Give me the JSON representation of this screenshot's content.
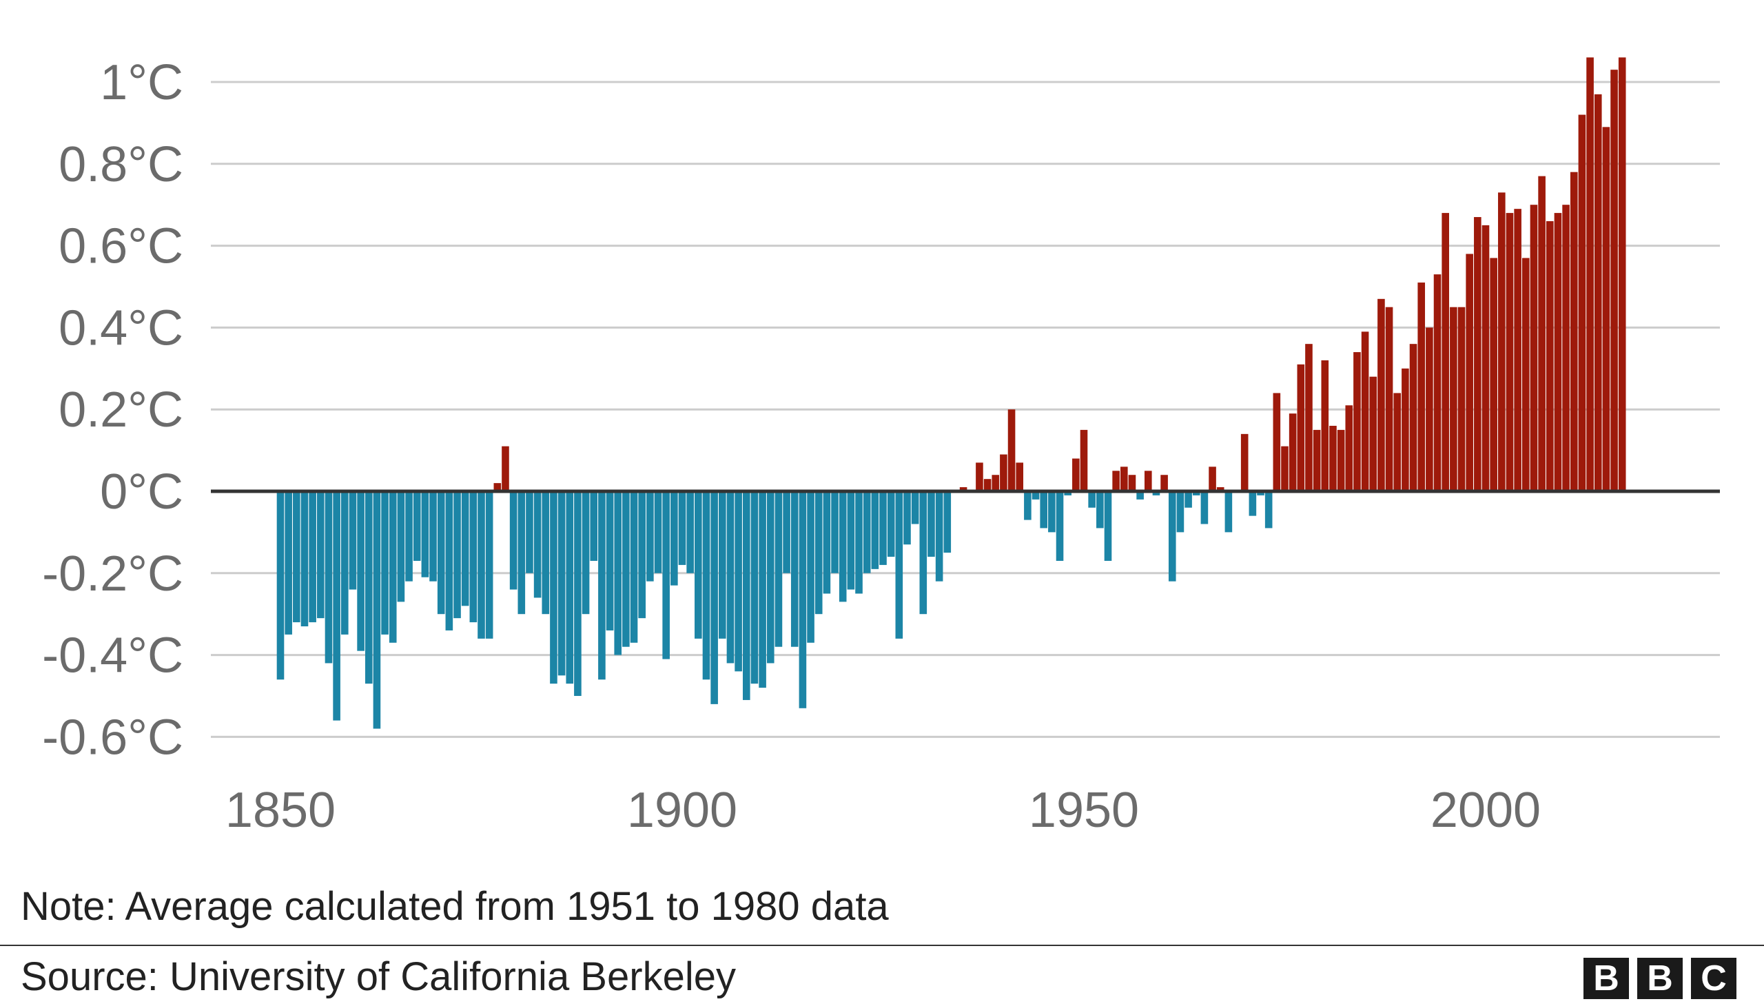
{
  "chart_data": {
    "type": "bar",
    "title": "",
    "xlabel": "",
    "ylabel": "",
    "baseline_label": "Average calculated from 1951 to 1980 data",
    "ylim": [
      -0.62,
      1.06
    ],
    "xlim": [
      1840,
      2028
    ],
    "yticks": [
      {
        "value": 1.0,
        "label": "1°C"
      },
      {
        "value": 0.8,
        "label": "0.8°C"
      },
      {
        "value": 0.6,
        "label": "0.6°C"
      },
      {
        "value": 0.4,
        "label": "0.4°C"
      },
      {
        "value": 0.2,
        "label": "0.2°C"
      },
      {
        "value": 0.0,
        "label": "0°C"
      },
      {
        "value": -0.2,
        "label": "-0.2°C"
      },
      {
        "value": -0.4,
        "label": "-0.4°C"
      },
      {
        "value": -0.6,
        "label": "-0.6°C"
      }
    ],
    "xticks": [
      {
        "value": 1850,
        "label": "1850"
      },
      {
        "value": 1900,
        "label": "1900"
      },
      {
        "value": 1950,
        "label": "1950"
      },
      {
        "value": 2000,
        "label": "2000"
      }
    ],
    "colors": {
      "positive": "#9e1a0b",
      "negative": "#1c85a6",
      "zero_line": "#333333",
      "grid": "#cccccc"
    },
    "grid": true,
    "x_start": 1850,
    "values": [
      -0.46,
      -0.35,
      -0.32,
      -0.33,
      -0.32,
      -0.31,
      -0.42,
      -0.56,
      -0.35,
      -0.24,
      -0.39,
      -0.47,
      -0.58,
      -0.35,
      -0.37,
      -0.27,
      -0.22,
      -0.17,
      -0.21,
      -0.22,
      -0.3,
      -0.34,
      -0.31,
      -0.28,
      -0.32,
      -0.36,
      -0.36,
      0.02,
      0.11,
      -0.24,
      -0.3,
      -0.2,
      -0.26,
      -0.3,
      -0.47,
      -0.45,
      -0.47,
      -0.5,
      -0.3,
      -0.17,
      -0.46,
      -0.34,
      -0.4,
      -0.38,
      -0.37,
      -0.31,
      -0.22,
      -0.2,
      -0.41,
      -0.23,
      -0.18,
      -0.2,
      -0.36,
      -0.46,
      -0.52,
      -0.36,
      -0.42,
      -0.44,
      -0.51,
      -0.47,
      -0.48,
      -0.42,
      -0.38,
      -0.2,
      -0.38,
      -0.53,
      -0.37,
      -0.3,
      -0.25,
      -0.2,
      -0.27,
      -0.24,
      -0.25,
      -0.2,
      -0.19,
      -0.18,
      -0.16,
      -0.36,
      -0.13,
      -0.08,
      -0.3,
      -0.16,
      -0.22,
      -0.15,
      0.0,
      0.01,
      0.0,
      0.07,
      0.03,
      0.04,
      0.09,
      0.2,
      0.07,
      -0.07,
      -0.02,
      -0.09,
      -0.1,
      -0.17,
      -0.01,
      0.08,
      0.15,
      -0.04,
      -0.09,
      -0.17,
      0.05,
      0.06,
      0.04,
      -0.02,
      0.05,
      -0.01,
      0.04,
      -0.22,
      -0.1,
      -0.04,
      -0.01,
      -0.08,
      0.06,
      0.01,
      -0.1,
      0.0,
      0.14,
      -0.06,
      -0.01,
      -0.09,
      0.24,
      0.11,
      0.19,
      0.31,
      0.36,
      0.15,
      0.32,
      0.16,
      0.15,
      0.21,
      0.34,
      0.39,
      0.28,
      0.47,
      0.45,
      0.24,
      0.3,
      0.36,
      0.51,
      0.4,
      0.53,
      0.68,
      0.45,
      0.45,
      0.58,
      0.67,
      0.65,
      0.57,
      0.73,
      0.68,
      0.69,
      0.57,
      0.7,
      0.77,
      0.66,
      0.68,
      0.7,
      0.78,
      0.92,
      1.06,
      0.97,
      0.89,
      1.03,
      1.06
    ]
  },
  "footer": {
    "note": "Note: Average calculated from 1951 to 1980 data",
    "source": "Source: University of California Berkeley",
    "logo_letters": [
      "B",
      "B",
      "C"
    ]
  }
}
